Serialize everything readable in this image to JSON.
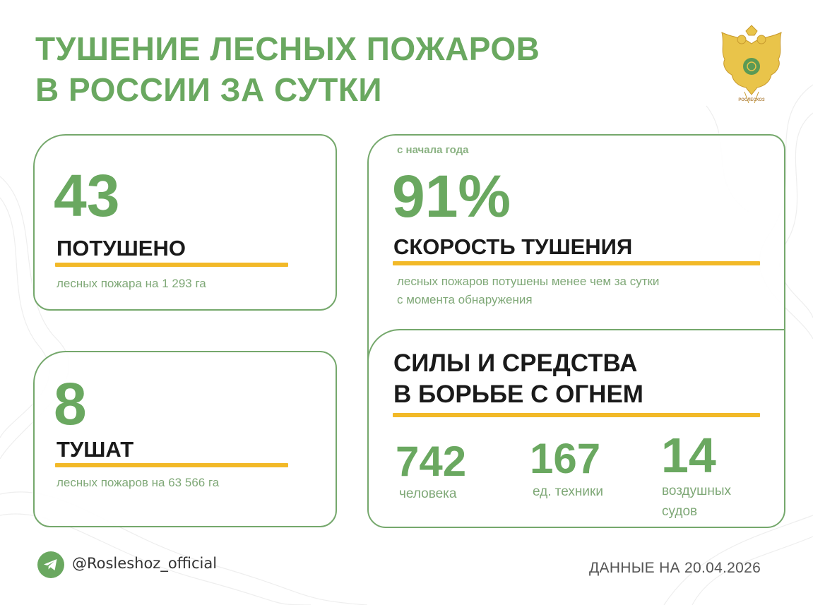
{
  "title": {
    "line1": "ТУШЕНИЕ ЛЕСНЫХ ПОЖАРОВ",
    "line2": "В РОССИИ ЗА СУТКИ"
  },
  "emblem": {
    "caption": "РОСЛЕСХОЗ",
    "icon": "double-headed-eagle-icon"
  },
  "extinguished": {
    "value": "43",
    "heading": "ПОТУШЕНО",
    "description": "лесных пожара на 1 293 га"
  },
  "active": {
    "value": "8",
    "heading": "ТУШАТ",
    "description": "лесных пожаров на 63 566 га"
  },
  "speed": {
    "since": "с начала года",
    "value": "91%",
    "heading": "СКОРОСТЬ ТУШЕНИЯ",
    "description_line1": "лесных пожаров потушены менее чем за сутки",
    "description_line2": "с момента обнаружения"
  },
  "forces": {
    "heading_line1": "СИЛЫ И СРЕДСТВА",
    "heading_line2": "В БОРЬБЕ С ОГНЕМ",
    "stats": [
      {
        "value": "742",
        "label": "человека"
      },
      {
        "value": "167",
        "label": "ед. техники"
      },
      {
        "value": "14",
        "label_line1": "воздушных",
        "label_line2": "судов"
      }
    ]
  },
  "footer": {
    "telegram_handle": "@Rosleshoz_official",
    "date_text": "ДАННЫЕ НА 20.04.2026"
  },
  "colors": {
    "accent_green": "#6aa860",
    "border_green": "#75a86c",
    "highlight_yellow": "#f2b928",
    "text_dark": "#1a1a1a"
  }
}
